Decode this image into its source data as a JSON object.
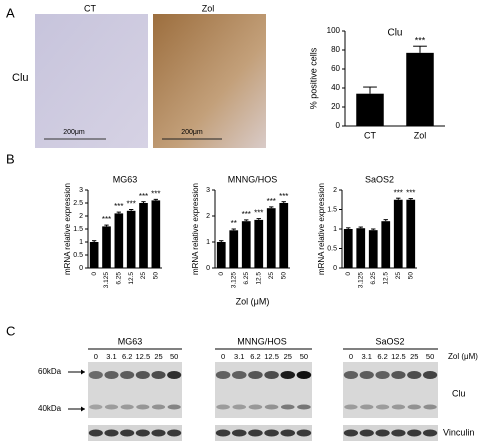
{
  "panels": {
    "a": "A",
    "b": "B",
    "c": "C"
  },
  "histology": {
    "row_label": "Clu",
    "columns": [
      "CT",
      "Zol"
    ],
    "scale_bar": [
      "200μm",
      "200μm"
    ]
  },
  "chart_data": [
    {
      "type": "bar",
      "title": "Clu",
      "ylabel": "% positive cells",
      "categories": [
        "CT",
        "Zol"
      ],
      "values": [
        34,
        77
      ],
      "errors": [
        7,
        7
      ],
      "annotations": [
        null,
        "***"
      ],
      "ylim": [
        0,
        100
      ],
      "yticks": [
        0,
        20,
        40,
        60,
        80,
        100
      ],
      "color": "#000000"
    },
    {
      "type": "bar",
      "title": "MG63",
      "ylabel": "mRNA relative expression",
      "categories": [
        "0",
        "3.125",
        "6.25",
        "12.5",
        "25",
        "50"
      ],
      "values": [
        1.0,
        1.6,
        2.1,
        2.2,
        2.5,
        2.6
      ],
      "errors": [
        0.05,
        0.05,
        0.05,
        0.05,
        0.05,
        0.04
      ],
      "annotations": [
        null,
        "***",
        "***",
        "***",
        "***",
        "***"
      ],
      "ylim": [
        0,
        3
      ],
      "yticks": [
        0,
        0.5,
        1,
        1.5,
        2,
        2.5,
        3
      ],
      "color": "#000000"
    },
    {
      "type": "bar",
      "title": "MNNG/HOS",
      "ylabel": "mRNA relative expression",
      "xlabel": "Zol (μM)",
      "categories": [
        "0",
        "3.125",
        "6.25",
        "12.5",
        "25",
        "50"
      ],
      "values": [
        1.0,
        1.45,
        1.8,
        1.85,
        2.3,
        2.5
      ],
      "errors": [
        0.05,
        0.05,
        0.05,
        0.05,
        0.05,
        0.05
      ],
      "annotations": [
        null,
        "**",
        "***",
        "***",
        "***",
        "***"
      ],
      "ylim": [
        0,
        3
      ],
      "yticks": [
        0,
        1,
        2,
        3
      ],
      "color": "#000000"
    },
    {
      "type": "bar",
      "title": "SaOS2",
      "ylabel": "mRNA relative expression",
      "categories": [
        "0",
        "3.125",
        "6.25",
        "12.5",
        "25",
        "50"
      ],
      "values": [
        1.0,
        1.02,
        0.97,
        1.2,
        1.75,
        1.75
      ],
      "errors": [
        0.03,
        0.03,
        0.03,
        0.04,
        0.04,
        0.03
      ],
      "annotations": [
        null,
        null,
        null,
        null,
        "***",
        "***"
      ],
      "ylim": [
        0,
        2
      ],
      "yticks": [
        0,
        0.5,
        1,
        1.5,
        2
      ],
      "color": "#000000"
    }
  ],
  "blots": {
    "groups": [
      "MG63",
      "MNNG/HOS",
      "SaOS2"
    ],
    "lanes": [
      "0",
      "3.1",
      "6.2",
      "12.5",
      "25",
      "50"
    ],
    "dose_label": "Zol (μM)",
    "markers": [
      "60kDa",
      "40kDa"
    ],
    "proteins": [
      "Clu",
      "Vinculin"
    ]
  }
}
